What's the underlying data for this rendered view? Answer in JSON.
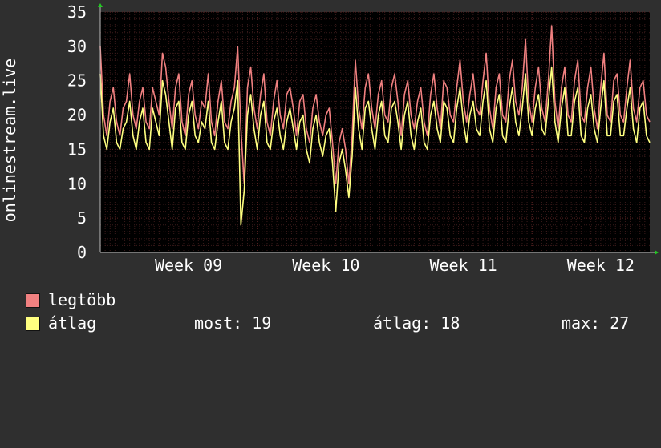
{
  "chart_data": {
    "type": "line",
    "ylabel": "onlinestream.live",
    "ylim": [
      0,
      35
    ],
    "yticks": [
      0,
      5,
      10,
      15,
      20,
      25,
      30,
      35
    ],
    "grid": true,
    "xlabels": [
      "Week 09",
      "Week 10",
      "Week 11",
      "Week 12"
    ],
    "x_range_hours": [
      0,
      672
    ],
    "week_start_hours": [
      24,
      192,
      360,
      528
    ],
    "background": "#000000",
    "grid_color": "#5a2222",
    "series": [
      {
        "name": "legtöbb",
        "color": "#f08080",
        "x": [
          0,
          4,
          8,
          12,
          16,
          20,
          24,
          28,
          32,
          36,
          40,
          44,
          48,
          52,
          56,
          60,
          64,
          68,
          72,
          76,
          80,
          84,
          88,
          92,
          96,
          100,
          104,
          108,
          112,
          116,
          120,
          124,
          128,
          132,
          136,
          140,
          144,
          148,
          152,
          156,
          160,
          164,
          168,
          172,
          176,
          180,
          184,
          188,
          192,
          196,
          200,
          204,
          208,
          212,
          216,
          220,
          224,
          228,
          232,
          236,
          240,
          244,
          248,
          252,
          256,
          260,
          264,
          268,
          272,
          276,
          280,
          284,
          288,
          292,
          296,
          300,
          304,
          308,
          312,
          316,
          320,
          324,
          328,
          332,
          336,
          340,
          344,
          348,
          352,
          356,
          360,
          364,
          368,
          372,
          376,
          380,
          384,
          388,
          392,
          396,
          400,
          404,
          408,
          412,
          416,
          420,
          424,
          428,
          432,
          436,
          440,
          444,
          448,
          452,
          456,
          460,
          464,
          468,
          472,
          476,
          480,
          484,
          488,
          492,
          496,
          500,
          504,
          508,
          512,
          516,
          520,
          524,
          528,
          532,
          536,
          540,
          544,
          548,
          552,
          556,
          560,
          564,
          568,
          572,
          576,
          580,
          584,
          588,
          592,
          596,
          600,
          604,
          608,
          612,
          616,
          620,
          624,
          628,
          632,
          636,
          640,
          644,
          648,
          652,
          656,
          660,
          664,
          668,
          672
        ],
        "values": [
          30,
          20,
          17,
          22,
          24,
          19,
          17,
          21,
          22,
          26,
          20,
          18,
          22,
          24,
          19,
          18,
          24,
          22,
          20,
          29,
          27,
          22,
          18,
          24,
          26,
          19,
          17,
          23,
          25,
          20,
          18,
          22,
          21,
          26,
          19,
          17,
          22,
          25,
          19,
          18,
          22,
          24,
          30,
          18,
          10,
          24,
          27,
          21,
          18,
          23,
          26,
          19,
          17,
          22,
          25,
          20,
          18,
          23,
          24,
          21,
          17,
          22,
          23,
          18,
          16,
          21,
          23,
          19,
          17,
          20,
          21,
          16,
          10,
          16,
          18,
          15,
          10,
          17,
          28,
          21,
          18,
          24,
          26,
          21,
          18,
          23,
          25,
          20,
          19,
          24,
          26,
          22,
          17,
          23,
          25,
          20,
          18,
          22,
          24,
          19,
          17,
          23,
          26,
          21,
          18,
          25,
          24,
          20,
          19,
          24,
          28,
          22,
          19,
          23,
          26,
          21,
          20,
          25,
          29,
          21,
          18,
          24,
          26,
          20,
          19,
          25,
          28,
          22,
          20,
          24,
          31,
          22,
          19,
          24,
          27,
          21,
          19,
          25,
          33,
          22,
          18,
          24,
          27,
          20,
          19,
          25,
          28,
          20,
          19,
          24,
          27,
          21,
          18,
          24,
          29,
          20,
          19,
          25,
          26,
          20,
          19,
          24,
          28,
          21,
          19,
          24,
          25,
          20,
          19
        ]
      },
      {
        "name": "átlag",
        "color": "#ffff80",
        "x": [
          0,
          4,
          8,
          12,
          16,
          20,
          24,
          28,
          32,
          36,
          40,
          44,
          48,
          52,
          56,
          60,
          64,
          68,
          72,
          76,
          80,
          84,
          88,
          92,
          96,
          100,
          104,
          108,
          112,
          116,
          120,
          124,
          128,
          132,
          136,
          140,
          144,
          148,
          152,
          156,
          160,
          164,
          168,
          172,
          176,
          180,
          184,
          188,
          192,
          196,
          200,
          204,
          208,
          212,
          216,
          220,
          224,
          228,
          232,
          236,
          240,
          244,
          248,
          252,
          256,
          260,
          264,
          268,
          272,
          276,
          280,
          284,
          288,
          292,
          296,
          300,
          304,
          308,
          312,
          316,
          320,
          324,
          328,
          332,
          336,
          340,
          344,
          348,
          352,
          356,
          360,
          364,
          368,
          372,
          376,
          380,
          384,
          388,
          392,
          396,
          400,
          404,
          408,
          412,
          416,
          420,
          424,
          428,
          432,
          436,
          440,
          444,
          448,
          452,
          456,
          460,
          464,
          468,
          472,
          476,
          480,
          484,
          488,
          492,
          496,
          500,
          504,
          508,
          512,
          516,
          520,
          524,
          528,
          532,
          536,
          540,
          544,
          548,
          552,
          556,
          560,
          564,
          568,
          572,
          576,
          580,
          584,
          588,
          592,
          596,
          600,
          604,
          608,
          612,
          616,
          620,
          624,
          628,
          632,
          636,
          640,
          644,
          648,
          652,
          656,
          660,
          664,
          668,
          672
        ],
        "values": [
          26,
          17,
          15,
          19,
          21,
          16,
          15,
          18,
          19,
          22,
          17,
          15,
          19,
          21,
          16,
          15,
          21,
          19,
          17,
          25,
          23,
          19,
          15,
          21,
          22,
          16,
          15,
          20,
          22,
          17,
          16,
          19,
          18,
          22,
          16,
          15,
          19,
          22,
          16,
          15,
          19,
          21,
          25,
          4,
          9,
          20,
          23,
          18,
          15,
          20,
          22,
          16,
          15,
          19,
          21,
          17,
          15,
          19,
          21,
          18,
          15,
          19,
          20,
          15,
          13,
          18,
          20,
          16,
          14,
          17,
          18,
          13,
          6,
          13,
          15,
          12,
          8,
          14,
          24,
          18,
          15,
          21,
          22,
          18,
          15,
          20,
          22,
          17,
          16,
          21,
          22,
          19,
          15,
          20,
          22,
          17,
          15,
          19,
          21,
          16,
          15,
          20,
          22,
          18,
          16,
          22,
          21,
          17,
          16,
          21,
          24,
          19,
          16,
          20,
          22,
          18,
          17,
          22,
          25,
          18,
          16,
          21,
          23,
          17,
          16,
          21,
          24,
          19,
          17,
          21,
          26,
          19,
          17,
          21,
          23,
          18,
          17,
          22,
          27,
          19,
          16,
          21,
          24,
          17,
          17,
          22,
          24,
          17,
          16,
          21,
          23,
          18,
          16,
          21,
          25,
          17,
          17,
          22,
          23,
          17,
          17,
          21,
          24,
          18,
          16,
          21,
          22,
          17,
          16
        ]
      }
    ]
  },
  "legend": {
    "items": [
      {
        "label": "legtöbb",
        "color": "#f08080"
      },
      {
        "label": "átlag",
        "color": "#ffff80"
      }
    ],
    "stats": [
      {
        "text": "most: 19"
      },
      {
        "text": "átlag: 18"
      },
      {
        "text": "max: 27"
      }
    ]
  }
}
